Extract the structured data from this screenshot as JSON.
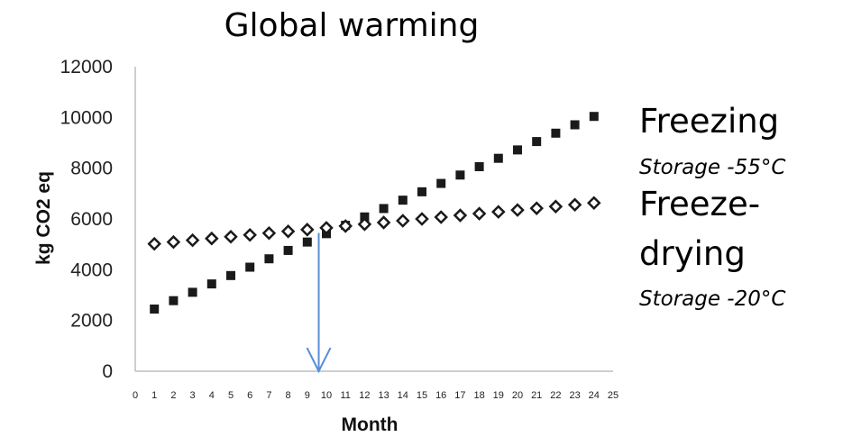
{
  "chart_data": {
    "type": "scatter",
    "title": "Global warming",
    "xlabel": "Month",
    "ylabel": "kg CO2 eq",
    "xlim": [
      0,
      25
    ],
    "ylim": [
      0,
      12000
    ],
    "x_ticks": [
      0,
      1,
      2,
      3,
      4,
      5,
      6,
      7,
      8,
      9,
      10,
      11,
      12,
      13,
      14,
      15,
      16,
      17,
      18,
      19,
      20,
      21,
      22,
      23,
      24,
      25
    ],
    "y_ticks": [
      0,
      2000,
      4000,
      6000,
      8000,
      10000,
      12000
    ],
    "grid": false,
    "legend": "right",
    "series": [
      {
        "name": "Freezing",
        "note": "Storage -55°C",
        "marker": "square",
        "color": "#1a1a1a",
        "x": [
          1,
          2,
          3,
          4,
          5,
          6,
          7,
          8,
          9,
          10,
          11,
          12,
          13,
          14,
          15,
          16,
          17,
          18,
          19,
          20,
          21,
          22,
          23,
          24
        ],
        "values": [
          2450,
          2780,
          3110,
          3440,
          3770,
          4100,
          4430,
          4760,
          5090,
          5420,
          5750,
          6080,
          6410,
          6740,
          7070,
          7400,
          7730,
          8060,
          8390,
          8720,
          9050,
          9380,
          9710,
          10040
        ]
      },
      {
        "name": "Freeze-drying",
        "name_lines": [
          "Freeze-",
          "drying"
        ],
        "note": "Storage -20°C",
        "marker": "diamond-open",
        "color": "#1a1a1a",
        "x": [
          1,
          2,
          3,
          4,
          5,
          6,
          7,
          8,
          9,
          10,
          11,
          12,
          13,
          14,
          15,
          16,
          17,
          18,
          19,
          20,
          21,
          22,
          23,
          24
        ],
        "values": [
          5020,
          5090,
          5160,
          5230,
          5300,
          5370,
          5440,
          5510,
          5580,
          5650,
          5720,
          5790,
          5860,
          5930,
          6000,
          6070,
          6140,
          6210,
          6280,
          6350,
          6420,
          6490,
          6560,
          6630
        ]
      }
    ],
    "annotations": [
      {
        "type": "arrow",
        "color": "#5b8ed6",
        "x": 9.6,
        "y_from": 5450,
        "y_to": 0
      }
    ]
  }
}
